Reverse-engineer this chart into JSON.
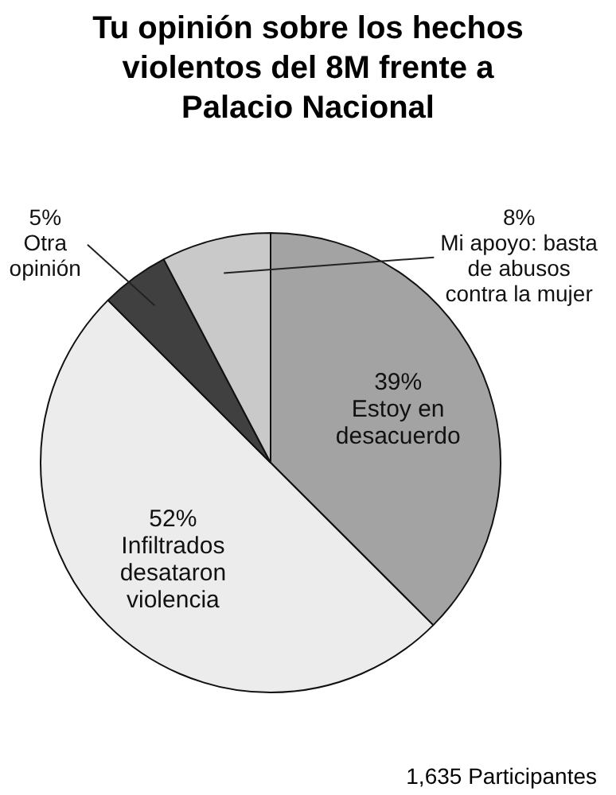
{
  "chart_data": {
    "type": "pie",
    "title": "Tu opinión sobre los hechos violentos del 8M frente a Palacio Nacional",
    "categories": [
      "Estoy en desacuerdo",
      "Infiltrados desataron violencia",
      "Otra opinión",
      "Mi apoyo: basta de abusos contra la mujer"
    ],
    "values": [
      39,
      52,
      5,
      8
    ],
    "colors": [
      "#a3a3a3",
      "#ececec",
      "#404040",
      "#c9c9c9"
    ],
    "value_labels": [
      "39%",
      "52%",
      "5%",
      "8%"
    ],
    "legend": false,
    "annotations": [
      "1,635 Participantes"
    ]
  }
}
